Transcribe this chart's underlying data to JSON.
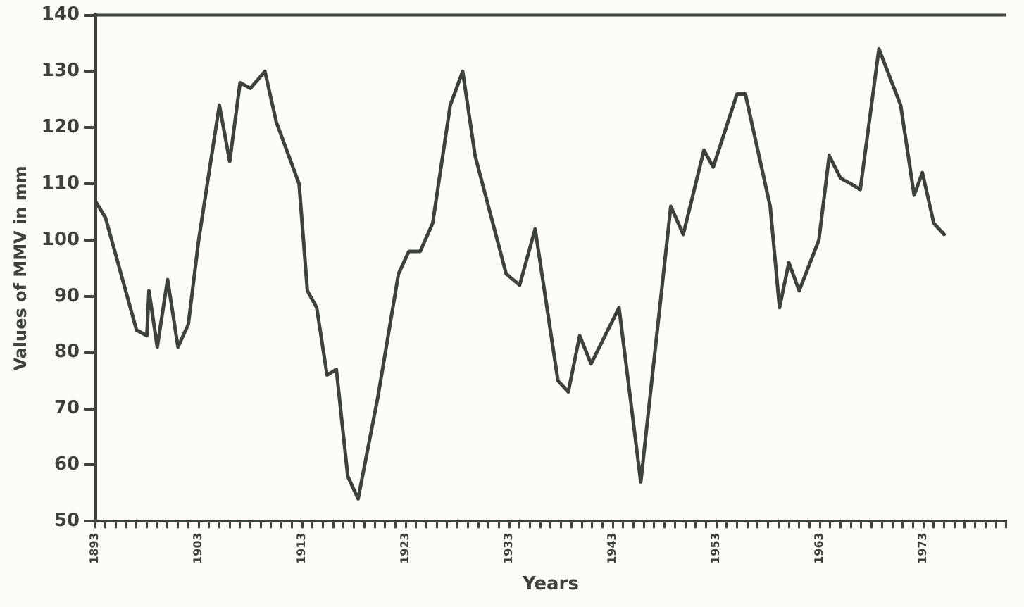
{
  "chart_data": {
    "type": "line",
    "xlabel": "Years",
    "ylabel": "Values of MMV in mm",
    "x": [
      1893,
      1894,
      1897,
      1898,
      1898.2,
      1899,
      1900,
      1901,
      1902,
      1903,
      1905,
      1906,
      1907,
      1908,
      1909.4,
      1910.5,
      1912.7,
      1913.5,
      1914.4,
      1915.4,
      1916.3,
      1917.4,
      1918.4,
      1920.3,
      1922.3,
      1923.3,
      1924.4,
      1925.6,
      1927.3,
      1928.5,
      1929.7,
      1932.7,
      1934,
      1935.5,
      1937.7,
      1938.7,
      1939.8,
      1940.9,
      1943.6,
      1945.7,
      1948.6,
      1949.8,
      1951.8,
      1952.7,
      1955,
      1955.8,
      1958.2,
      1959.1,
      1960,
      1961,
      1962.9,
      1963.9,
      1965,
      1966,
      1966.9,
      1968.7,
      1970.8,
      1972.1,
      1972.9,
      1974,
      1975
    ],
    "series": [
      {
        "color": "#3d423b",
        "values": [
          107,
          104,
          84,
          83,
          91,
          81,
          93,
          81,
          85,
          100,
          124,
          114,
          128,
          127,
          130,
          121,
          110,
          91,
          88,
          76,
          77,
          58,
          54,
          72,
          94,
          98,
          98,
          103,
          124,
          130,
          115,
          94,
          92,
          102,
          75,
          73,
          83,
          78,
          88,
          57,
          106,
          101,
          116,
          113,
          126,
          126,
          106,
          88,
          96,
          91,
          100,
          115,
          111,
          110,
          109,
          134,
          124,
          108,
          112,
          103,
          101
        ]
      }
    ],
    "xlim": [
      1893,
      1981
    ],
    "ylim": [
      50,
      140
    ],
    "xticks": [
      1893,
      {
        "value": 1894,
        "label": null
      },
      {
        "value": 1895,
        "label": null
      },
      {
        "value": 1896,
        "label": null
      },
      {
        "value": 1897,
        "label": null
      },
      {
        "value": 1898,
        "label": null
      },
      {
        "value": 1899,
        "label": null
      },
      {
        "value": 1900,
        "label": null
      },
      {
        "value": 1901,
        "label": null
      },
      {
        "value": 1902,
        "label": null
      },
      1903,
      {
        "value": 1904,
        "label": null
      },
      {
        "value": 1905,
        "label": null
      },
      {
        "value": 1906,
        "label": null
      },
      {
        "value": 1907,
        "label": null
      },
      {
        "value": 1908,
        "label": null
      },
      {
        "value": 1909,
        "label": null
      },
      {
        "value": 1910,
        "label": null
      },
      {
        "value": 1911,
        "label": null
      },
      {
        "value": 1912,
        "label": null
      },
      1913,
      {
        "value": 1914,
        "label": null
      },
      {
        "value": 1915,
        "label": null
      },
      {
        "value": 1916,
        "label": null
      },
      {
        "value": 1917,
        "label": null
      },
      {
        "value": 1918,
        "label": null
      },
      {
        "value": 1919,
        "label": null
      },
      {
        "value": 1920,
        "label": null
      },
      {
        "value": 1921,
        "label": null
      },
      {
        "value": 1922,
        "label": null
      },
      1923,
      {
        "value": 1924,
        "label": null
      },
      {
        "value": 1925,
        "label": null
      },
      {
        "value": 1926,
        "label": null
      },
      {
        "value": 1927,
        "label": null
      },
      {
        "value": 1928,
        "label": null
      },
      {
        "value": 1929,
        "label": null
      },
      {
        "value": 1930,
        "label": null
      },
      {
        "value": 1931,
        "label": null
      },
      {
        "value": 1932,
        "label": null
      },
      1933,
      {
        "value": 1934,
        "label": null
      },
      {
        "value": 1935,
        "label": null
      },
      {
        "value": 1936,
        "label": null
      },
      {
        "value": 1937,
        "label": null
      },
      {
        "value": 1938,
        "label": null
      },
      {
        "value": 1939,
        "label": null
      },
      {
        "value": 1940,
        "label": null
      },
      {
        "value": 1941,
        "label": null
      },
      {
        "value": 1942,
        "label": null
      },
      1943,
      {
        "value": 1944,
        "label": null
      },
      {
        "value": 1945,
        "label": null
      },
      {
        "value": 1946,
        "label": null
      },
      {
        "value": 1947,
        "label": null
      },
      {
        "value": 1948,
        "label": null
      },
      {
        "value": 1949,
        "label": null
      },
      {
        "value": 1950,
        "label": null
      },
      {
        "value": 1951,
        "label": null
      },
      {
        "value": 1952,
        "label": null
      },
      1953,
      {
        "value": 1954,
        "label": null
      },
      {
        "value": 1955,
        "label": null
      },
      {
        "value": 1956,
        "label": null
      },
      {
        "value": 1957,
        "label": null
      },
      {
        "value": 1958,
        "label": null
      },
      {
        "value": 1959,
        "label": null
      },
      {
        "value": 1960,
        "label": null
      },
      {
        "value": 1961,
        "label": null
      },
      {
        "value": 1962,
        "label": null
      },
      1963,
      {
        "value": 1964,
        "label": null
      },
      {
        "value": 1965,
        "label": null
      },
      {
        "value": 1966,
        "label": null
      },
      {
        "value": 1967,
        "label": null
      },
      {
        "value": 1968,
        "label": null
      },
      {
        "value": 1969,
        "label": null
      },
      {
        "value": 1970,
        "label": null
      },
      {
        "value": 1971,
        "label": null
      },
      {
        "value": 1972,
        "label": null
      },
      1973,
      {
        "value": 1974,
        "label": null
      },
      {
        "value": 1975,
        "label": null
      },
      {
        "value": 1976,
        "label": null
      },
      {
        "value": 1977,
        "label": null
      },
      {
        "value": 1978,
        "label": null
      },
      {
        "value": 1979,
        "label": null
      },
      {
        "value": 1980,
        "label": null
      },
      {
        "value": 1981,
        "label": null
      }
    ],
    "yticks": [
      50,
      60,
      70,
      80,
      90,
      100,
      110,
      120,
      130,
      140
    ],
    "grid": false,
    "legend": false,
    "marker": "none",
    "line_style": "solid"
  }
}
